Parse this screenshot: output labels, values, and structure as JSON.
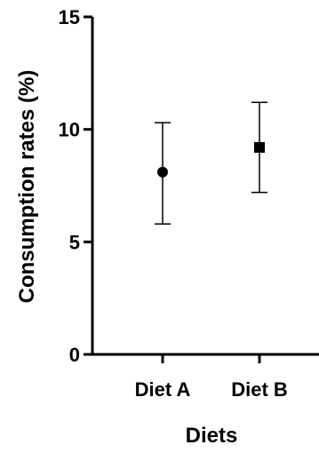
{
  "chart_data": {
    "type": "scatter",
    "xlabel": "Diets",
    "ylabel": "Consumption rates (%)",
    "categories": [
      "Diet A",
      "Diet B"
    ],
    "yticks": [
      0,
      5,
      10,
      15
    ],
    "ylim": [
      0,
      15
    ],
    "grid": false,
    "series": [
      {
        "category": "Diet A",
        "marker": "circle",
        "mean": 8.1,
        "error_low": 5.8,
        "error_high": 10.3
      },
      {
        "category": "Diet B",
        "marker": "square",
        "mean": 9.2,
        "error_low": 7.2,
        "error_high": 11.2
      }
    ],
    "colors": {
      "marker": "#000000",
      "axis": "#000000"
    }
  }
}
